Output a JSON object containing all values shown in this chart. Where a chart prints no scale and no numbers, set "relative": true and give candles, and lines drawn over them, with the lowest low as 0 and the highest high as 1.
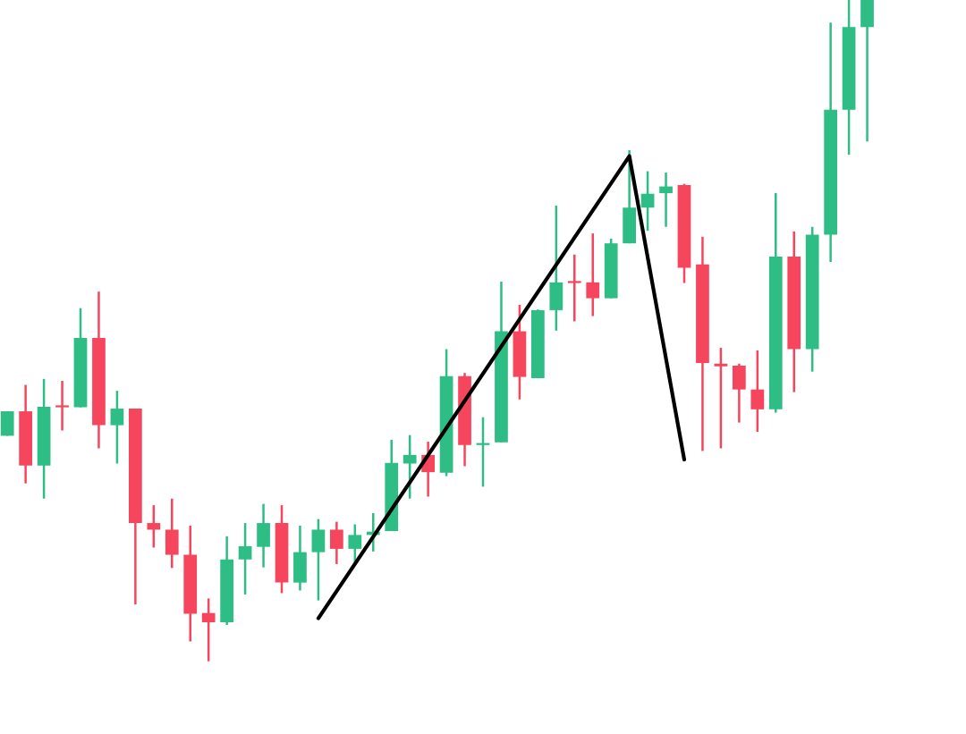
{
  "chart_data": {
    "type": "candlestick",
    "relative": true,
    "categories": [
      null,
      null,
      null,
      null,
      null,
      null,
      null,
      null,
      null,
      null,
      null,
      null,
      null,
      null,
      null,
      null,
      null,
      null,
      null,
      null,
      null,
      null,
      null,
      null,
      null,
      null,
      null,
      null,
      null,
      null,
      null,
      null,
      null,
      null,
      null,
      null,
      null,
      null,
      null,
      null,
      null,
      null,
      null,
      null,
      null,
      null,
      null,
      null
    ],
    "ohlc": [
      [
        0.341,
        0.378,
        0.341,
        0.378
      ],
      [
        0.378,
        0.418,
        0.269,
        0.296
      ],
      [
        0.296,
        0.427,
        0.246,
        0.385
      ],
      [
        0.385,
        0.424,
        0.349,
        0.384
      ],
      [
        0.384,
        0.534,
        0.384,
        0.489
      ],
      [
        0.489,
        0.559,
        0.322,
        0.357
      ],
      [
        0.357,
        0.409,
        0.299,
        0.382
      ],
      [
        0.382,
        0.382,
        0.086,
        0.209
      ],
      [
        0.209,
        0.236,
        0.172,
        0.199
      ],
      [
        0.199,
        0.246,
        0.141,
        0.161
      ],
      [
        0.161,
        0.205,
        0.03,
        0.072
      ],
      [
        0.073,
        0.095,
        0,
        0.059
      ],
      [
        0.059,
        0.189,
        0.055,
        0.154
      ],
      [
        0.154,
        0.209,
        0.101,
        0.174
      ],
      [
        0.173,
        0.238,
        0.142,
        0.209
      ],
      [
        0.209,
        0.236,
        0.103,
        0.119
      ],
      [
        0.119,
        0.205,
        0.107,
        0.165
      ],
      [
        0.165,
        0.215,
        0.092,
        0.199
      ],
      [
        0.199,
        0.211,
        0.147,
        0.17
      ],
      [
        0.17,
        0.207,
        0.147,
        0.191
      ],
      [
        0.191,
        0.224,
        0.166,
        0.196
      ],
      [
        0.197,
        0.335,
        0.197,
        0.3
      ],
      [
        0.299,
        0.342,
        0.246,
        0.312
      ],
      [
        0.312,
        0.332,
        0.249,
        0.286
      ],
      [
        0.285,
        0.472,
        0.28,
        0.431
      ],
      [
        0.431,
        0.436,
        0.295,
        0.327
      ],
      [
        0.327,
        0.369,
        0.264,
        0.33
      ],
      [
        0.331,
        0.574,
        0.331,
        0.499
      ],
      [
        0.499,
        0.539,
        0.396,
        0.43
      ],
      [
        0.428,
        0.532,
        0.428,
        0.531
      ],
      [
        0.531,
        0.689,
        0.5,
        0.573
      ],
      [
        0.573,
        0.615,
        0.514,
        0.572
      ],
      [
        0.573,
        0.647,
        0.522,
        0.549
      ],
      [
        0.549,
        0.639,
        0.549,
        0.632
      ],
      [
        0.632,
        0.773,
        0.632,
        0.686
      ],
      [
        0.686,
        0.741,
        0.651,
        0.707
      ],
      [
        0.708,
        0.739,
        0.657,
        0.718
      ],
      [
        0.72,
        0.722,
        0.572,
        0.595
      ],
      [
        0.6,
        0.642,
        0.318,
        0.451
      ],
      [
        0.45,
        0.474,
        0.322,
        0.446
      ],
      [
        0.447,
        0.45,
        0.361,
        0.411
      ],
      [
        0.411,
        0.47,
        0.347,
        0.381
      ],
      [
        0.381,
        0.708,
        0.376,
        0.612
      ],
      [
        0.612,
        0.65,
        0.407,
        0.472
      ],
      [
        0.472,
        0.657,
        0.438,
        0.645
      ],
      [
        0.645,
        0.966,
        0.604,
        0.834
      ],
      [
        0.834,
        1.0,
        0.766,
        0.959
      ],
      [
        0.959,
        1.0,
        0.786,
        1.0
      ]
    ],
    "colors": [
      "#2ebd85",
      "#f6465d",
      "#2ebd85",
      "#f6465d",
      "#2ebd85",
      "#f6465d",
      "#2ebd85",
      "#f6465d",
      "#f6465d",
      "#f6465d",
      "#f6465d",
      "#f6465d",
      "#2ebd85",
      "#2ebd85",
      "#2ebd85",
      "#f6465d",
      "#2ebd85",
      "#2ebd85",
      "#f6465d",
      "#2ebd85",
      "#2ebd85",
      "#2ebd85",
      "#2ebd85",
      "#f6465d",
      "#2ebd85",
      "#f6465d",
      "#2ebd85",
      "#2ebd85",
      "#f6465d",
      "#2ebd85",
      "#2ebd85",
      "#f6465d",
      "#f6465d",
      "#2ebd85",
      "#2ebd85",
      "#2ebd85",
      "#2ebd85",
      "#f6465d",
      "#f6465d",
      "#f6465d",
      "#f6465d",
      "#f6465d",
      "#2ebd85",
      "#f6465d",
      "#2ebd85",
      "#2ebd85",
      "#2ebd85",
      "#2ebd85"
    ],
    "series": [
      {
        "type": "line",
        "values": [
          null,
          null,
          null,
          null,
          null,
          null,
          null,
          null,
          null,
          null,
          null,
          null,
          null,
          null,
          null,
          null,
          null,
          0.065,
          null,
          null,
          null,
          null,
          null,
          null,
          null,
          null,
          null,
          null,
          null,
          null,
          null,
          null,
          null,
          null,
          0.764,
          null,
          null,
          0.305,
          null,
          null,
          null,
          null,
          null,
          null,
          null,
          null,
          null,
          null
        ],
        "color": "#000000"
      }
    ]
  }
}
